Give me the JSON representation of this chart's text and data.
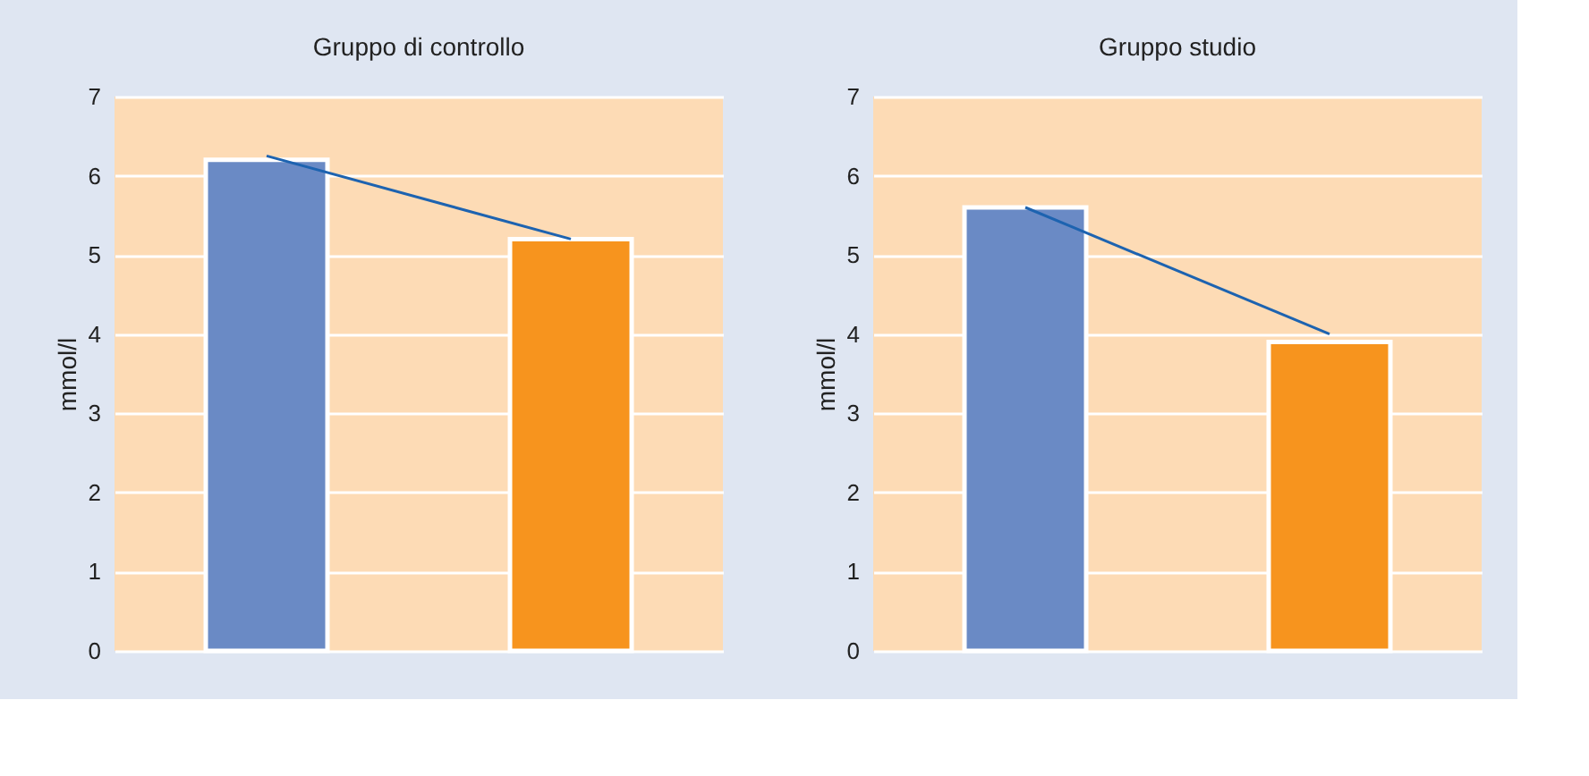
{
  "chart_data": [
    {
      "type": "bar",
      "title": "Gruppo di controllo",
      "ylabel": "mmol/l",
      "categories": [
        null,
        null
      ],
      "ylim": [
        0,
        7
      ],
      "yticks": [
        0,
        1,
        2,
        3,
        4,
        5,
        6,
        7
      ],
      "grid": "y",
      "tick_labels": "y",
      "series": [
        {
          "type": "bar",
          "colors": [
            "#6a8ac5",
            "#f7941e"
          ],
          "values": [
            6.2,
            5.2
          ]
        },
        {
          "type": "line",
          "color": "#1d63b0",
          "values": [
            6.25,
            5.2
          ]
        }
      ]
    },
    {
      "type": "bar",
      "title": "Gruppo studio",
      "ylabel": "mmol/l",
      "categories": [
        null,
        null
      ],
      "ylim": [
        0,
        7
      ],
      "yticks": [
        0,
        1,
        2,
        3,
        4,
        5,
        6,
        7
      ],
      "grid": "y",
      "tick_labels": "y",
      "series": [
        {
          "type": "bar",
          "colors": [
            "#6a8ac5",
            "#f7941e"
          ],
          "values": [
            5.6,
            3.9
          ]
        },
        {
          "type": "line",
          "color": "#1d63b0",
          "values": [
            5.6,
            4.0
          ]
        }
      ]
    }
  ]
}
